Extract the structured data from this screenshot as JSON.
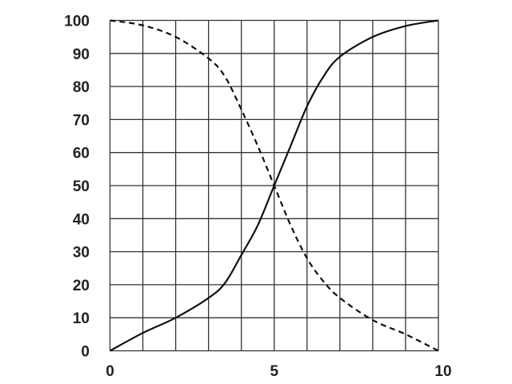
{
  "chart_data": {
    "type": "line",
    "title": "",
    "xlabel": "",
    "ylabel": "",
    "xlim": [
      0,
      10
    ],
    "ylim": [
      0,
      100
    ],
    "grid": true,
    "x_grid_step": 1,
    "y_grid_step": 10,
    "x_tick_labels": [
      "0",
      "5",
      "10"
    ],
    "x_ticks": [
      0,
      5,
      10
    ],
    "y_tick_labels": [
      "0",
      "10",
      "20",
      "30",
      "40",
      "50",
      "60",
      "70",
      "80",
      "90",
      "100"
    ],
    "y_ticks": [
      0,
      10,
      20,
      30,
      40,
      50,
      60,
      70,
      80,
      90,
      100
    ],
    "series": [
      {
        "style": "solid",
        "color": "#111111",
        "x": [
          0,
          1,
          2,
          3,
          3.5,
          4,
          4.5,
          5,
          5.5,
          6,
          6.5,
          7,
          8,
          9,
          10
        ],
        "y": [
          0,
          5.4,
          10,
          16,
          20.5,
          29,
          38,
          50,
          62,
          74,
          83,
          89,
          95,
          98.3,
          100
        ]
      },
      {
        "style": "dashed",
        "color": "#111111",
        "x": [
          0,
          1,
          2,
          3,
          3.5,
          4,
          4.5,
          5,
          5.5,
          6,
          6.5,
          7,
          8,
          9,
          10
        ],
        "y": [
          100,
          98.5,
          95,
          88.5,
          83,
          73,
          62,
          50,
          38,
          28,
          21,
          16,
          9.3,
          5,
          0
        ]
      }
    ]
  }
}
